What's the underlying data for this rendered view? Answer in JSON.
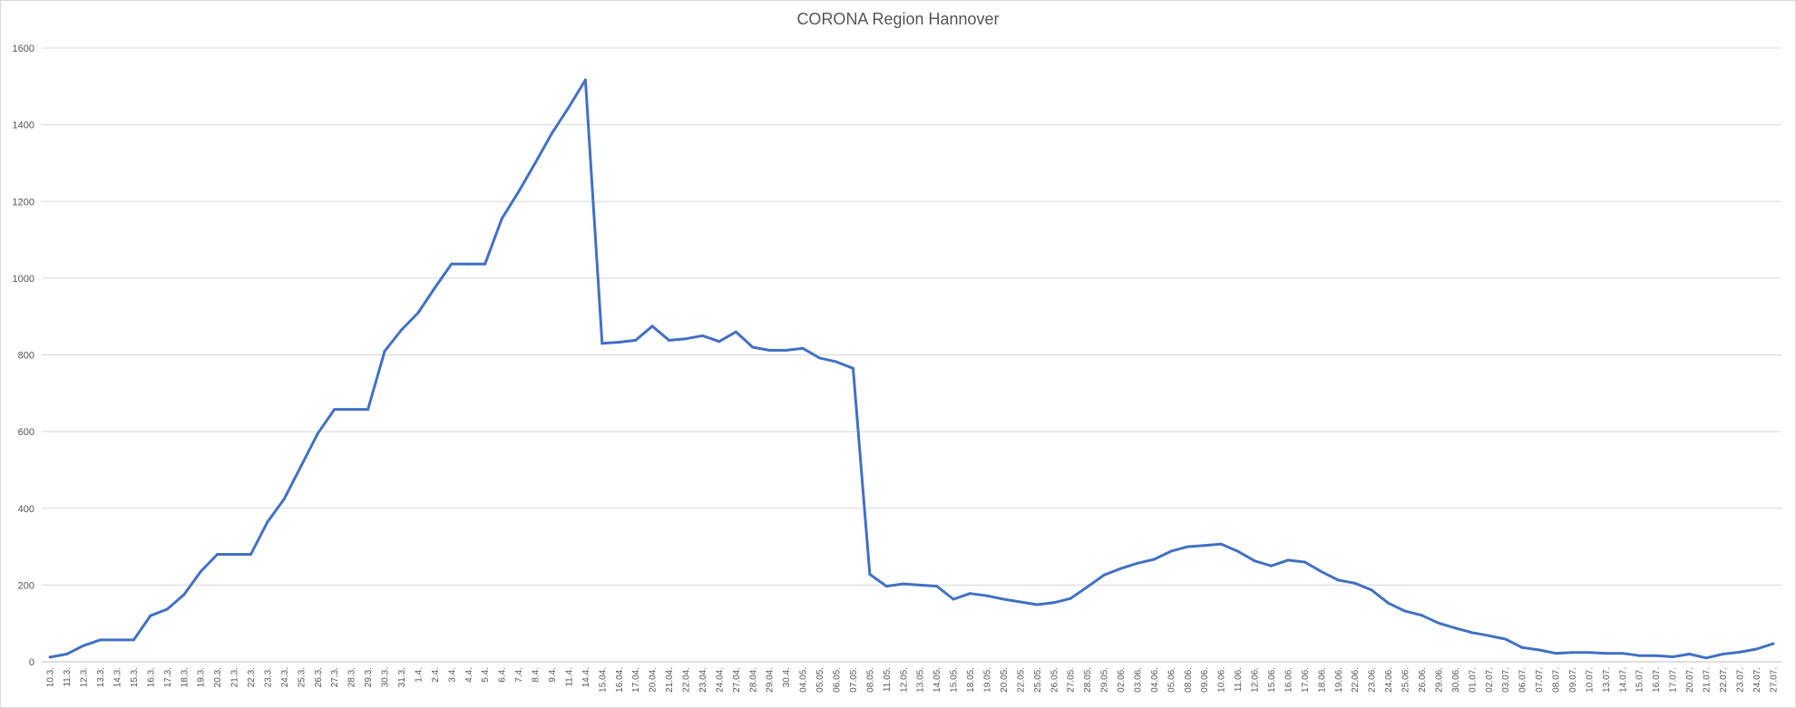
{
  "chart_data": {
    "type": "line",
    "title": "CORONA Region Hannover",
    "xlabel": "",
    "ylabel": "",
    "ylim": [
      0,
      1600
    ],
    "yticks": [
      0,
      200,
      400,
      600,
      800,
      1000,
      1200,
      1400,
      1600
    ],
    "grid": true,
    "legend": "none",
    "series_color": "#4472c4",
    "categories": [
      "10.3.",
      "11.3.",
      "12.3.",
      "13.3.",
      "14.3.",
      "15.3.",
      "16.3.",
      "17.3.",
      "18.3.",
      "19.3.",
      "20.3.",
      "21.3.",
      "22.3.",
      "23.3.",
      "24.3.",
      "25.3.",
      "26.3.",
      "27.3.",
      "28.3.",
      "29.3.",
      "30.3.",
      "31.3.",
      "1.4.",
      "2.4.",
      "3.4.",
      "4.4.",
      "5.4.",
      "6.4.",
      "7.4.",
      "8.4.",
      "9.4.",
      "11.4.",
      "14.4.",
      "15.04.",
      "16.04.",
      "17.04.",
      "20.04.",
      "21.04.",
      "22.04.",
      "23.04.",
      "24.04.",
      "27.04.",
      "28.04.",
      "29.04.",
      "30.4.",
      "04.05.",
      "05.05.",
      "06.05.",
      "07.05.",
      "08.05.",
      "11.05.",
      "12.05.",
      "13.05.",
      "14.05.",
      "15.05.",
      "18.05.",
      "19.05.",
      "20.05.",
      "22.05.",
      "25.05.",
      "26.05.",
      "27.05.",
      "28.05.",
      "29.05.",
      "02.06.",
      "03.06.",
      "04.06.",
      "05.06.",
      "08.06.",
      "09.06.",
      "10.06.",
      "11.06.",
      "12.06.",
      "15.06.",
      "16.06.",
      "17.06.",
      "18.06.",
      "19.06.",
      "22.06.",
      "23.06.",
      "24.06.",
      "25.06.",
      "26.06.",
      "29.06.",
      "30.06.",
      "01.07.",
      "02.07.",
      "03.07.",
      "06.07.",
      "07.07.",
      "08.07.",
      "09.07.",
      "10.07.",
      "13.07.",
      "14.07.",
      "15.07.",
      "16.07.",
      "17.07.",
      "20.07.",
      "21.07.",
      "22.07.",
      "23.07.",
      "24.07.",
      "27.07."
    ],
    "series": [
      {
        "values": [
          12,
          20,
          42,
          57,
          57,
          57,
          120,
          137,
          175,
          235,
          280,
          280,
          280,
          365,
          425,
          510,
          595,
          658,
          658,
          658,
          810,
          865,
          910,
          975,
          1037,
          1037,
          1037,
          1155,
          1225,
          1300,
          1378,
          1445,
          1517,
          830,
          833,
          838,
          875,
          838,
          842,
          850,
          835,
          860,
          820,
          812,
          812,
          817,
          792,
          782,
          765,
          228,
          197,
          203,
          200,
          197,
          163,
          178,
          172,
          163,
          156,
          149,
          154,
          165,
          195,
          226,
          243,
          257,
          267,
          288,
          300,
          303,
          307,
          288,
          263,
          250,
          265,
          260,
          235,
          213,
          205,
          187,
          153,
          132,
          121,
          101,
          88,
          76,
          68,
          59,
          37,
          31,
          22,
          24,
          24,
          22,
          22,
          16,
          16,
          13,
          20,
          10,
          20,
          25,
          33,
          47
        ]
      }
    ]
  }
}
